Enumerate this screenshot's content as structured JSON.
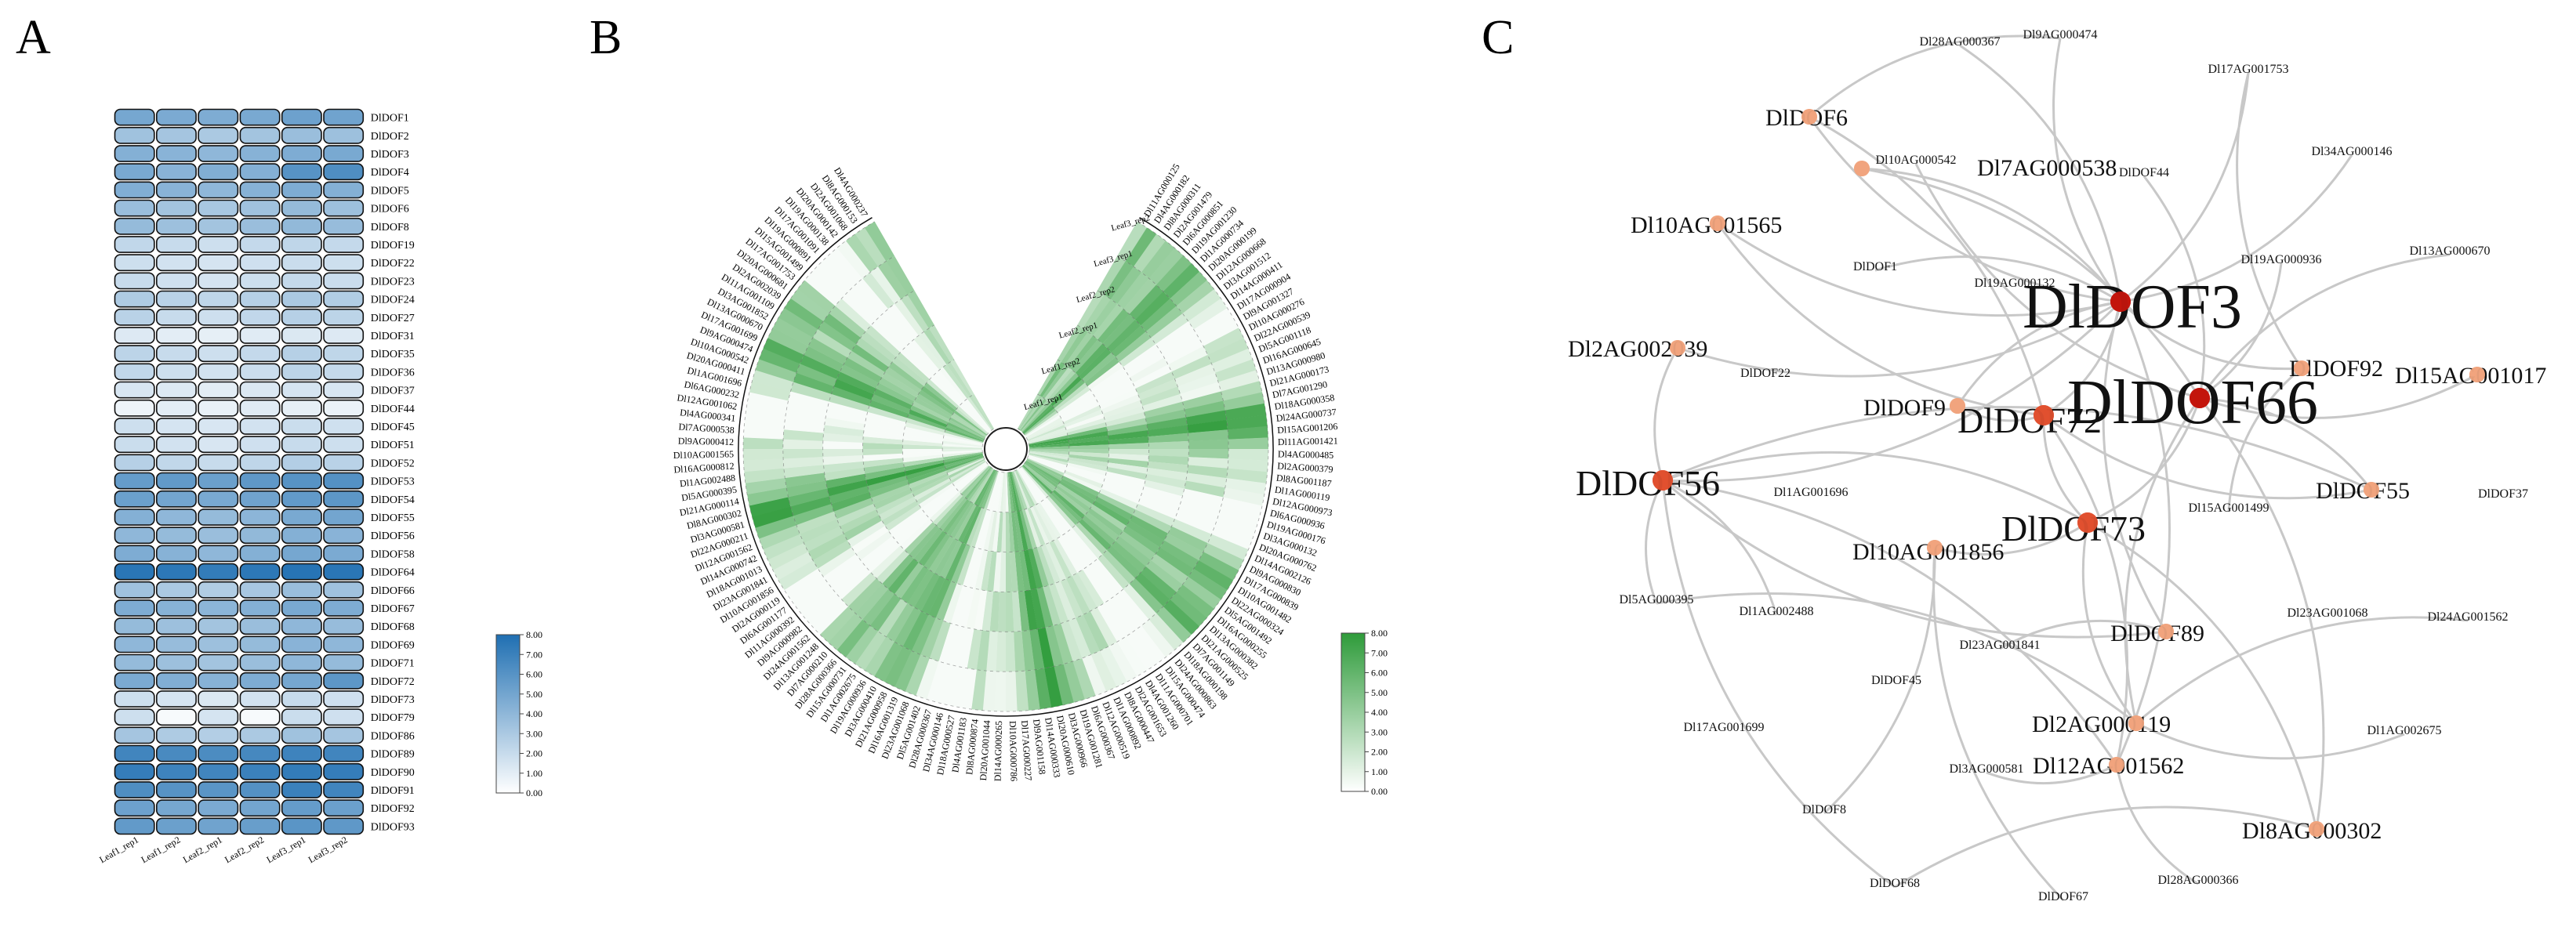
{
  "chart_data": [
    {
      "type": "heatmap",
      "panel_label": "A",
      "columns": [
        "Leaf1_rep1",
        "Leaf1_rep2",
        "Leaf2_rep1",
        "Leaf2_rep2",
        "Leaf3_rep1",
        "Leaf3_rep2"
      ],
      "rows": [
        "DlDOF1",
        "DlDOF2",
        "DlDOF3",
        "DlDOF4",
        "DlDOF5",
        "DlDOF6",
        "DlDOF8",
        "DlDOF19",
        "DlDOF22",
        "DlDOF23",
        "DlDOF24",
        "DlDOF27",
        "DlDOF31",
        "DlDOF35",
        "DlDOF36",
        "DlDOF37",
        "DlDOF44",
        "DlDOF45",
        "DlDOF51",
        "DlDOF52",
        "DlDOF53",
        "DlDOF54",
        "DlDOF55",
        "DlDOF56",
        "DlDOF58",
        "DlDOF64",
        "DlDOF66",
        "DlDOF67",
        "DlDOF68",
        "DlDOF69",
        "DlDOF71",
        "DlDOF72",
        "DlDOF73",
        "DlDOF79",
        "DlDOF86",
        "DlDOF89",
        "DlDOF90",
        "DlDOF91",
        "DlDOF92",
        "DlDOF93"
      ],
      "values": [
        [
          4.9,
          4.7,
          4.6,
          4.8,
          5.2,
          5.1
        ],
        [
          3.4,
          3.2,
          3.0,
          3.3,
          3.6,
          3.5
        ],
        [
          4.4,
          4.2,
          4.0,
          4.3,
          4.6,
          4.8
        ],
        [
          4.8,
          4.2,
          4.5,
          4.4,
          6.0,
          6.3
        ],
        [
          4.5,
          4.2,
          4.0,
          4.3,
          4.6,
          4.4
        ],
        [
          3.6,
          3.3,
          3.1,
          3.4,
          3.8,
          3.5
        ],
        [
          3.8,
          3.5,
          3.3,
          3.6,
          3.9,
          3.7
        ],
        [
          2.2,
          2.0,
          1.8,
          2.1,
          2.3,
          2.1
        ],
        [
          1.8,
          1.6,
          1.5,
          1.7,
          1.9,
          1.8
        ],
        [
          2.0,
          1.7,
          1.5,
          1.8,
          2.1,
          1.9
        ],
        [
          2.9,
          2.5,
          2.3,
          2.6,
          3.0,
          2.8
        ],
        [
          2.5,
          2.0,
          1.8,
          2.2,
          2.6,
          2.4
        ],
        [
          1.2,
          1.0,
          0.9,
          1.1,
          1.3,
          1.2
        ],
        [
          2.4,
          2.0,
          1.8,
          2.1,
          2.6,
          2.3
        ],
        [
          2.2,
          1.8,
          1.6,
          1.9,
          2.4,
          2.1
        ],
        [
          1.4,
          1.2,
          1.0,
          1.3,
          1.5,
          1.4
        ],
        [
          0.6,
          1.0,
          0.8,
          1.1,
          0.9,
          0.7
        ],
        [
          1.8,
          1.5,
          1.4,
          1.6,
          1.9,
          1.7
        ],
        [
          1.9,
          1.6,
          1.4,
          1.7,
          2.0,
          1.8
        ],
        [
          2.6,
          2.2,
          2.0,
          2.3,
          2.7,
          2.5
        ],
        [
          5.5,
          5.6,
          5.3,
          5.7,
          6.0,
          6.1
        ],
        [
          5.3,
          5.0,
          4.8,
          5.1,
          5.6,
          5.8
        ],
        [
          4.4,
          4.0,
          3.8,
          4.1,
          4.8,
          5.0
        ],
        [
          4.0,
          3.8,
          3.6,
          3.9,
          4.4,
          4.2
        ],
        [
          4.6,
          4.3,
          4.0,
          4.4,
          4.9,
          4.7
        ],
        [
          7.6,
          7.5,
          7.3,
          7.5,
          7.7,
          7.6
        ],
        [
          3.4,
          3.0,
          2.8,
          3.1,
          3.6,
          3.4
        ],
        [
          4.6,
          4.3,
          4.1,
          4.4,
          4.8,
          4.6
        ],
        [
          3.8,
          3.5,
          3.3,
          3.6,
          4.0,
          3.7
        ],
        [
          4.0,
          3.7,
          3.5,
          3.8,
          4.2,
          4.0
        ],
        [
          3.8,
          3.5,
          3.3,
          3.6,
          4.0,
          3.8
        ],
        [
          4.7,
          4.5,
          4.3,
          4.6,
          4.9,
          5.8
        ],
        [
          1.8,
          1.5,
          1.3,
          1.6,
          2.0,
          1.7
        ],
        [
          1.8,
          0.3,
          1.5,
          0.3,
          1.9,
          1.7
        ],
        [
          3.2,
          2.9,
          2.7,
          3.0,
          3.4,
          3.2
        ],
        [
          6.8,
          6.5,
          6.4,
          6.6,
          6.9,
          6.8
        ],
        [
          7.2,
          6.9,
          6.8,
          7.0,
          7.3,
          7.2
        ],
        [
          6.3,
          6.0,
          5.9,
          6.1,
          7.0,
          6.8
        ],
        [
          5.2,
          4.9,
          4.7,
          5.0,
          5.5,
          5.3
        ],
        [
          5.6,
          5.3,
          5.1,
          5.4,
          5.9,
          5.7
        ]
      ],
      "colorbar": {
        "ticks": [
          "0.00",
          "1.00",
          "2.00",
          "3.00",
          "4.00",
          "5.00",
          "6.00",
          "7.00",
          "8.00"
        ],
        "min": 0,
        "max": 8
      },
      "colors": {
        "low": "#ffffff",
        "high": "#1f6fb2"
      }
    },
    {
      "type": "heatmap",
      "subtype": "circular",
      "panel_label": "B",
      "ring_labels": [
        "Leaf3_rep2",
        "Leaf3_rep1",
        "Leaf2_rep2",
        "Leaf2_rep1",
        "Leaf1_rep2",
        "Leaf1_rep1"
      ],
      "n_genes": 120,
      "gene_labels_left": [
        "Dl4AG000237",
        "Dl8AG000153",
        "Dl2AG001068",
        "Dl20AG000142",
        "Dl19AG000138",
        "Dl17AG001091",
        "Dl19AG000891",
        "Dl15AG001499",
        "Dl17AG001753",
        "Dl20AG000681",
        "Dl2AG002039",
        "Dl11AG001109",
        "Dl3AG001852",
        "Dl13AG000670",
        "Dl17AG001699",
        "Dl9AG000474",
        "Dl10AG000542",
        "Dl20AG000411",
        "Dl1AG001696",
        "Dl6AG000232",
        "Dl12AG001062",
        "Dl4AG000341",
        "Dl7AG000538",
        "Dl9AG000412",
        "Dl10AG001565",
        "Dl16AG000812",
        "Dl1AG002488",
        "Dl5AG000395",
        "Dl21AG000114",
        "Dl8AG000302",
        "Dl3AG000581",
        "Dl22AG000211",
        "Dl12AG001562",
        "Dl14AG000742",
        "Dl18AG001013",
        "Dl23AG001841",
        "Dl10AG001856",
        "Dl2AG000119",
        "Dl6AG001177",
        "Dl11AG000392",
        "Dl9AG000982",
        "Dl24AG001562",
        "Dl13AG001248",
        "Dl7AG000210",
        "Dl28AG000366",
        "Dl15AG000731",
        "Dl1AG002675",
        "Dl19AG000936",
        "Dl3AG000410",
        "Dl21AG000958",
        "Dl16AG001319",
        "Dl23AG001068",
        "Dl5AG001402",
        "Dl28AG000367",
        "Dl34AG000146",
        "Dl18AG000527",
        "Dl4AG001183",
        "Dl8AG000874",
        "Dl20AG001044",
        "Dl14AG000265"
      ],
      "gene_labels_right": [
        "Dl11AG000125",
        "Dl4AG000182",
        "Dl8AG000311",
        "Dl2AG001479",
        "Dl6AG000851",
        "Dl19AG001230",
        "Dl1AG000734",
        "Dl20AG000199",
        "Dl12AG000668",
        "Dl3AG001512",
        "Dl14AG000411",
        "Dl17AG000904",
        "Dl9AG001327",
        "Dl10AG000276",
        "Dl22AG000539",
        "Dl5AG001118",
        "Dl16AG000645",
        "Dl13AG000980",
        "Dl21AG000173",
        "Dl7AG001290",
        "Dl18AG000358",
        "Dl24AG000737",
        "Dl15AG001206",
        "Dl11AG001421",
        "Dl4AG000485",
        "Dl2AG000379",
        "Dl8AG001187",
        "Dl1AG000119",
        "Dl12AG000973",
        "Dl6AG000936",
        "Dl19AG000176",
        "Dl3AG000132",
        "Dl20AG000762",
        "Dl14AG002126",
        "Dl9AG000830",
        "Dl17AG000839",
        "Dl10AG001482",
        "Dl22AG000324",
        "Dl5AG001492",
        "Dl16AG000255",
        "Dl13AG000382",
        "Dl21AG000525",
        "Dl7AG001149",
        "Dl18AG000198",
        "Dl24AG000863",
        "Dl15AG000474",
        "Dl11AG000701",
        "Dl4AG001260",
        "Dl2AG001653",
        "Dl8AG000447",
        "Dl1AG000892",
        "Dl12AG000519",
        "Dl6AG000367",
        "Dl19AG001281",
        "Dl3AG000966",
        "Dl20AG000610",
        "Dl14AG000333",
        "Dl9AG001158",
        "Dl17AG000227",
        "Dl10AG000786"
      ],
      "colorbar": {
        "ticks": [
          "0.00",
          "1.00",
          "2.00",
          "3.00",
          "4.00",
          "5.00",
          "6.00",
          "7.00",
          "8.00"
        ],
        "min": 0,
        "max": 8
      },
      "colors": {
        "low": "#ffffff",
        "high": "#2e9b3a"
      }
    },
    {
      "type": "network",
      "panel_label": "C",
      "nodes": [
        {
          "id": "DlDOF3",
          "kind": "hub",
          "label_size": "xl"
        },
        {
          "id": "DlDOF66",
          "kind": "hub",
          "label_size": "xl"
        },
        {
          "id": "DlDOF72",
          "kind": "major",
          "label_size": "lg"
        },
        {
          "id": "DlDOF73",
          "kind": "major",
          "label_size": "lg"
        },
        {
          "id": "DlDOF56",
          "kind": "major",
          "label_size": "lg"
        },
        {
          "id": "DlDOF6",
          "kind": "minor",
          "label_size": "md"
        },
        {
          "id": "Dl7AG000538",
          "kind": "minor",
          "label_size": "md"
        },
        {
          "id": "Dl10AG001565",
          "kind": "minor",
          "label_size": "md"
        },
        {
          "id": "Dl2AG002039",
          "kind": "minor",
          "label_size": "md"
        },
        {
          "id": "DlDOF92",
          "kind": "minor",
          "label_size": "md"
        },
        {
          "id": "Dl15AG001017",
          "kind": "minor",
          "label_size": "md"
        },
        {
          "id": "DlDOF9",
          "kind": "minor",
          "label_size": "md"
        },
        {
          "id": "DlDOF55",
          "kind": "minor",
          "label_size": "md"
        },
        {
          "id": "Dl10AG001856",
          "kind": "minor",
          "label_size": "md"
        },
        {
          "id": "DlDOF89",
          "kind": "minor",
          "label_size": "md"
        },
        {
          "id": "Dl2AG000119",
          "kind": "minor",
          "label_size": "md"
        },
        {
          "id": "Dl12AG001562",
          "kind": "minor",
          "label_size": "md"
        },
        {
          "id": "Dl8AG000302",
          "kind": "minor",
          "label_size": "md"
        },
        {
          "id": "Dl28AG000367",
          "kind": "leaf",
          "label_size": "sm"
        },
        {
          "id": "Dl9AG000474",
          "kind": "leaf",
          "label_size": "sm"
        },
        {
          "id": "Dl17AG001753",
          "kind": "leaf",
          "label_size": "sm"
        },
        {
          "id": "Dl10AG000542",
          "kind": "leaf",
          "label_size": "sm"
        },
        {
          "id": "DlDOF44",
          "kind": "leaf",
          "label_size": "sm"
        },
        {
          "id": "Dl34AG000146",
          "kind": "leaf",
          "label_size": "sm"
        },
        {
          "id": "DlDOF1",
          "kind": "leaf",
          "label_size": "sm"
        },
        {
          "id": "Dl19AG000936",
          "kind": "leaf",
          "label_size": "sm"
        },
        {
          "id": "Dl19AG000132",
          "kind": "leaf",
          "label_size": "sm"
        },
        {
          "id": "Dl13AG000670",
          "kind": "leaf",
          "label_size": "sm"
        },
        {
          "id": "DlDOF22",
          "kind": "leaf",
          "label_size": "sm"
        },
        {
          "id": "Dl1AG001696",
          "kind": "leaf",
          "label_size": "sm"
        },
        {
          "id": "Dl15AG001499",
          "kind": "leaf",
          "label_size": "sm"
        },
        {
          "id": "DlDOF37",
          "kind": "leaf",
          "label_size": "sm"
        },
        {
          "id": "Dl5AG000395",
          "kind": "leaf",
          "label_size": "sm"
        },
        {
          "id": "Dl1AG002488",
          "kind": "leaf",
          "label_size": "sm"
        },
        {
          "id": "Dl23AG001841",
          "kind": "leaf",
          "label_size": "sm"
        },
        {
          "id": "Dl23AG001068",
          "kind": "leaf",
          "label_size": "sm"
        },
        {
          "id": "Dl24AG001562",
          "kind": "leaf",
          "label_size": "sm"
        },
        {
          "id": "DlDOF45",
          "kind": "leaf",
          "label_size": "sm"
        },
        {
          "id": "Dl17AG001699",
          "kind": "leaf",
          "label_size": "sm"
        },
        {
          "id": "Dl3AG000581",
          "kind": "leaf",
          "label_size": "sm"
        },
        {
          "id": "Dl1AG002675",
          "kind": "leaf",
          "label_size": "sm"
        },
        {
          "id": "DlDOF8",
          "kind": "leaf",
          "label_size": "sm"
        },
        {
          "id": "DlDOF68",
          "kind": "leaf",
          "label_size": "sm"
        },
        {
          "id": "DlDOF67",
          "kind": "leaf",
          "label_size": "sm"
        },
        {
          "id": "Dl28AG000366",
          "kind": "leaf",
          "label_size": "sm"
        }
      ],
      "edges": [
        [
          "DlDOF3",
          "Dl28AG000367"
        ],
        [
          "DlDOF3",
          "Dl9AG000474"
        ],
        [
          "DlDOF3",
          "Dl17AG001753"
        ],
        [
          "DlDOF3",
          "DlDOF6"
        ],
        [
          "DlDOF3",
          "Dl7AG000538"
        ],
        [
          "DlDOF3",
          "Dl10AG001565"
        ],
        [
          "DlDOF3",
          "DlDOF1"
        ],
        [
          "DlDOF3",
          "Dl2AG002039"
        ],
        [
          "DlDOF3",
          "DlDOF92"
        ],
        [
          "DlDOF3",
          "DlDOF72"
        ],
        [
          "DlDOF3",
          "DlDOF9"
        ],
        [
          "DlDOF3",
          "DlDOF56"
        ],
        [
          "DlDOF3",
          "DlDOF89"
        ],
        [
          "DlDOF3",
          "Dl12AG001562"
        ],
        [
          "DlDOF3",
          "Dl34AG000146"
        ],
        [
          "DlDOF66",
          "Dl13AG000670"
        ],
        [
          "DlDOF66",
          "Dl15AG001017"
        ],
        [
          "DlDOF66",
          "DlDOF55"
        ],
        [
          "DlDOF66",
          "Dl7AG000538"
        ],
        [
          "DlDOF66",
          "DlDOF73"
        ],
        [
          "DlDOF66",
          "Dl2AG000119"
        ],
        [
          "DlDOF66",
          "Dl8AG000302"
        ],
        [
          "DlDOF66",
          "DlDOF44"
        ],
        [
          "DlDOF66",
          "Dl10AG000542"
        ],
        [
          "DlDOF66",
          "Dl19AG000936"
        ],
        [
          "DlDOF72",
          "DlDOF9"
        ],
        [
          "DlDOF72",
          "DlDOF73"
        ],
        [
          "DlDOF72",
          "Dl12AG001562"
        ],
        [
          "DlDOF72",
          "DlDOF55"
        ],
        [
          "DlDOF72",
          "Dl10AG001565"
        ],
        [
          "DlDOF72",
          "DlDOF6"
        ],
        [
          "DlDOF73",
          "Dl10AG001856"
        ],
        [
          "DlDOF73",
          "Dl2AG000119"
        ],
        [
          "DlDOF73",
          "Dl8AG000302"
        ],
        [
          "DlDOF73",
          "DlDOF56"
        ],
        [
          "DlDOF56",
          "Dl2AG002039"
        ],
        [
          "DlDOF56",
          "Dl5AG000395"
        ],
        [
          "DlDOF56",
          "Dl1AG002488"
        ],
        [
          "DlDOF56",
          "DlDOF68"
        ],
        [
          "DlDOF56",
          "Dl12AG001562"
        ],
        [
          "DlDOF56",
          "DlDOF89"
        ],
        [
          "DlDOF56",
          "DlDOF55"
        ],
        [
          "Dl10AG001856",
          "DlDOF67"
        ],
        [
          "Dl10AG001856",
          "DlDOF8"
        ],
        [
          "Dl2AG000119",
          "Dl1AG002675"
        ],
        [
          "Dl2AG000119",
          "Dl24AG001562"
        ],
        [
          "Dl12AG001562",
          "Dl28AG000366"
        ],
        [
          "Dl12AG001562",
          "Dl3AG000581"
        ],
        [
          "DlDOF92",
          "Dl15AG001499"
        ],
        [
          "DlDOF92",
          "Dl17AG001753"
        ],
        [
          "DlDOF89",
          "Dl23AG001841"
        ],
        [
          "DlDOF6",
          "Dl9AG000474"
        ],
        [
          "Dl8AG000302",
          "DlDOF68"
        ],
        [
          "Dl5AG000395",
          "Dl2AG000119"
        ]
      ],
      "colors": {
        "hub": "#c3150d",
        "major": "#e0502f",
        "minor": "#f0a47e",
        "leaf": "#f4b796",
        "edge": "#c8c8c8"
      }
    }
  ]
}
